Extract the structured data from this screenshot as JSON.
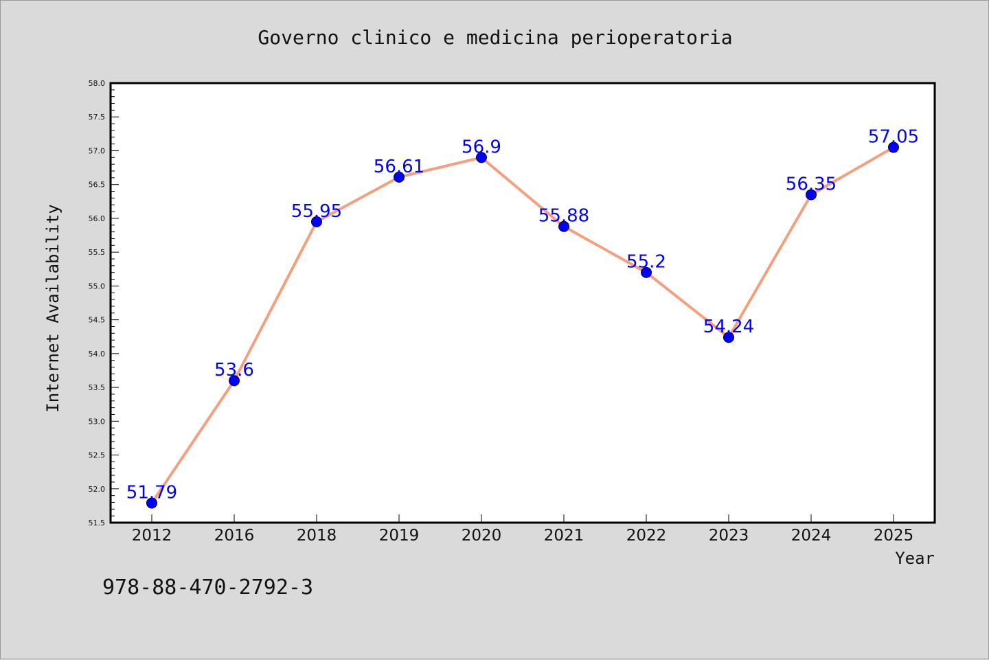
{
  "chart_data": {
    "type": "line",
    "title": "Governo clinico e medicina perioperatoria",
    "xlabel": "Year",
    "ylabel": "Internet Availability",
    "categories": [
      "2012",
      "2016",
      "2018",
      "2019",
      "2020",
      "2021",
      "2022",
      "2023",
      "2024",
      "2025"
    ],
    "series": [
      {
        "values": [
          51.79,
          53.6,
          55.95,
          56.61,
          56.9,
          55.88,
          55.2,
          54.24,
          56.35,
          57.05
        ],
        "labels": [
          "51.79",
          "53.6",
          "55.95",
          "56.61",
          "56.9",
          "55.88",
          "55.2",
          "54.24",
          "56.35",
          "57.05"
        ],
        "line_color": "#f4a07e",
        "marker_color": "#0000ff"
      }
    ],
    "ylim": [
      51.5,
      58.0
    ],
    "yticks": [
      "51.5",
      "52.0",
      "52.5",
      "53.0",
      "53.5",
      "54.0",
      "54.5",
      "55.0",
      "55.5",
      "56.0",
      "56.5",
      "57.0",
      "57.5",
      "58.0"
    ],
    "grid": false,
    "legend": "none",
    "label_color": "#0000ff",
    "background": "#dadada",
    "plot_background": "#ffffff"
  },
  "footer": {
    "isbn": "978-88-470-2792-3"
  }
}
